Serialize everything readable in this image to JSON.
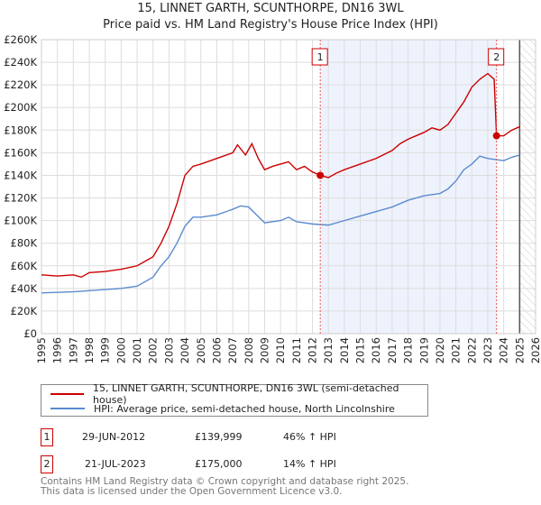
{
  "chart_data": {
    "type": "line",
    "title": "15, LINNET GARTH, SCUNTHORPE, DN16 3WL",
    "subtitle": "Price paid vs. HM Land Registry's House Price Index (HPI)",
    "xlim": [
      1995,
      2026
    ],
    "ylim": [
      0,
      260000
    ],
    "x_ticks": [
      "1995",
      "1996",
      "1997",
      "1998",
      "1999",
      "2000",
      "2001",
      "2002",
      "2003",
      "2004",
      "2005",
      "2006",
      "2007",
      "2008",
      "2009",
      "2010",
      "2011",
      "2012",
      "2013",
      "2014",
      "2015",
      "2016",
      "2017",
      "2018",
      "2019",
      "2020",
      "2021",
      "2022",
      "2023",
      "2024",
      "2025",
      "2026"
    ],
    "y_ticks": [
      "£0",
      "£20K",
      "£40K",
      "£60K",
      "£80K",
      "£100K",
      "£120K",
      "£140K",
      "£160K",
      "£180K",
      "£200K",
      "£220K",
      "£240K",
      "£260K"
    ],
    "grid": true,
    "series": [
      {
        "name": "15, LINNET GARTH, SCUNTHORPE, DN16 3WL (semi-detached house)",
        "color": "#cc0000",
        "x": [
          1995,
          1996,
          1997,
          1997.5,
          1998,
          1999,
          2000,
          2001,
          2002,
          2002.5,
          2003,
          2003.5,
          2004,
          2004.5,
          2005,
          2006,
          2007,
          2007.3,
          2007.8,
          2008.2,
          2008.6,
          2009,
          2009.5,
          2010,
          2010.5,
          2011,
          2011.5,
          2012,
          2012.5,
          2013,
          2013.5,
          2014,
          2015,
          2016,
          2017,
          2017.5,
          2018,
          2018.5,
          2019,
          2019.5,
          2020,
          2020.5,
          2021,
          2021.5,
          2022,
          2022.5,
          2023,
          2023.4,
          2023.55,
          2024,
          2024.5,
          2025
        ],
        "values": [
          52000,
          51000,
          52000,
          50000,
          54000,
          55000,
          57000,
          60000,
          68000,
          80000,
          95000,
          115000,
          140000,
          148000,
          150000,
          155000,
          160000,
          167000,
          158000,
          168000,
          155000,
          145000,
          148000,
          150000,
          152000,
          145000,
          148000,
          143000,
          140000,
          138000,
          142000,
          145000,
          150000,
          155000,
          162000,
          168000,
          172000,
          175000,
          178000,
          182000,
          180000,
          185000,
          195000,
          205000,
          218000,
          225000,
          230000,
          225000,
          175000,
          175000,
          180000,
          183000
        ]
      },
      {
        "name": "HPI: Average price, semi-detached house, North Lincolnshire",
        "color": "#5b8bd0",
        "x": [
          1995,
          1997,
          1998,
          1999,
          2000,
          2001,
          2002,
          2002.5,
          2003,
          2003.5,
          2004,
          2004.5,
          2005,
          2006,
          2007,
          2007.5,
          2008,
          2008.5,
          2009,
          2010,
          2010.5,
          2011,
          2012,
          2013,
          2014,
          2015,
          2016,
          2017,
          2018,
          2019,
          2020,
          2020.5,
          2021,
          2021.5,
          2022,
          2022.5,
          2023,
          2023.5,
          2024,
          2024.5,
          2025
        ],
        "values": [
          36000,
          37000,
          38000,
          39000,
          40000,
          42000,
          50000,
          60000,
          68000,
          80000,
          95000,
          103000,
          103000,
          105000,
          110000,
          113000,
          112000,
          105000,
          98000,
          100000,
          103000,
          99000,
          97000,
          96000,
          100000,
          104000,
          108000,
          112000,
          118000,
          122000,
          124000,
          128000,
          135000,
          145000,
          150000,
          157000,
          155000,
          154000,
          153000,
          156000,
          158000
        ]
      }
    ],
    "annotations": [
      {
        "label": "1",
        "date": "29-JUN-2012",
        "x": 2012.49,
        "price": "£139,999",
        "price_value": 139999,
        "hpi": "46% ↑ HPI"
      },
      {
        "label": "2",
        "date": "21-JUL-2023",
        "x": 2023.55,
        "price": "£175,000",
        "price_value": 175000,
        "hpi": "14% ↑ HPI"
      }
    ],
    "shaded_range": [
      2012.49,
      2023.55
    ],
    "hatched_from": 2025,
    "legend_placement": "below"
  },
  "footer": {
    "line1": "Contains HM Land Registry data © Crown copyright and database right 2025.",
    "line2": "This data is licensed under the Open Government Licence v3.0."
  }
}
